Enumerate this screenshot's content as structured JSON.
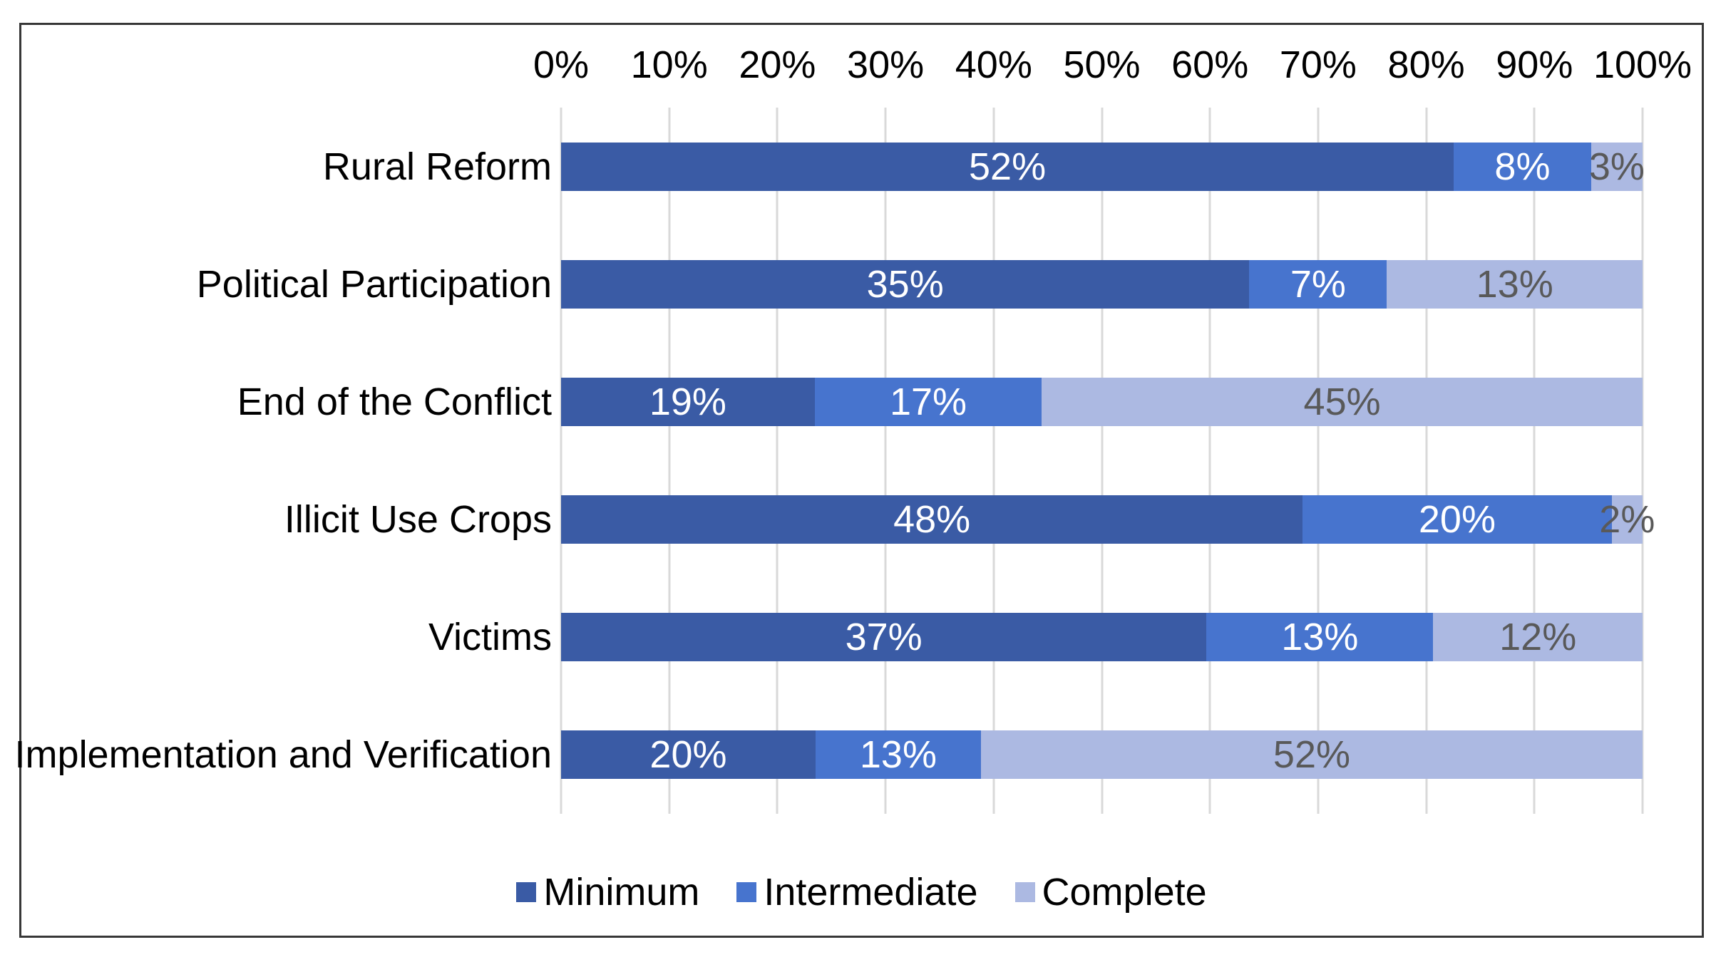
{
  "figure": {
    "background": "#ffffff",
    "border_color": "#373737"
  },
  "chart_data": {
    "type": "bar",
    "orientation": "horizontal",
    "stacked": true,
    "normalized_to_100_percent": true,
    "title": "",
    "xlabel": "",
    "ylabel": "",
    "categories": [
      "Rural Reform",
      "Political Participation",
      "End of the Conflict",
      "Illicit Use Crops",
      "Victims",
      "Implementation and Verification"
    ],
    "series": [
      {
        "name": "Minimum",
        "color": "#3A5BA5",
        "label_color": "#ffffff",
        "values": [
          52,
          35,
          19,
          48,
          37,
          20
        ]
      },
      {
        "name": "Intermediate",
        "color": "#4774CE",
        "label_color": "#ffffff",
        "values": [
          8,
          7,
          17,
          20,
          13,
          13
        ]
      },
      {
        "name": "Complete",
        "color": "#ACB9E2",
        "label_color": "#595959",
        "values": [
          3,
          13,
          45,
          2,
          12,
          52
        ]
      }
    ],
    "value_suffix": "%",
    "x_ticks": [
      "0%",
      "10%",
      "20%",
      "30%",
      "40%",
      "50%",
      "60%",
      "70%",
      "80%",
      "90%",
      "100%"
    ],
    "x_range": [
      0,
      100
    ],
    "grid": true,
    "gridline_color": "#D9D9D9",
    "legend_position": "bottom"
  }
}
